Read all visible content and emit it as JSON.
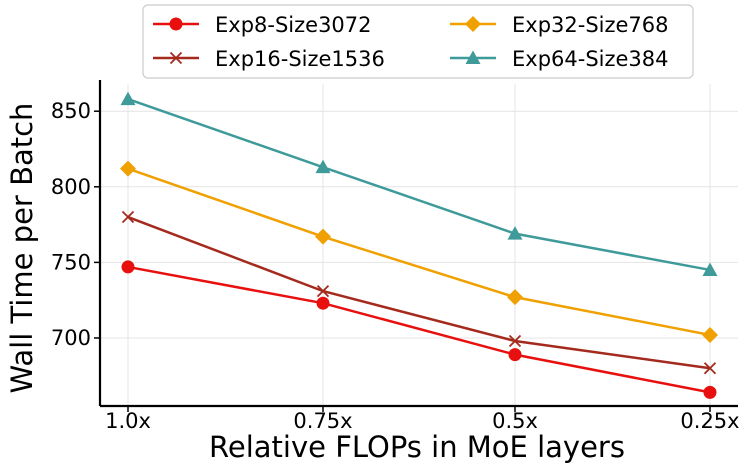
{
  "chart_data": {
    "type": "line",
    "title": "",
    "xlabel": "Relative FLOPs in MoE layers",
    "ylabel": "Wall Time per Batch",
    "categories": [
      "1.0x",
      "0.75x",
      "0.5x",
      "0.25x"
    ],
    "yticks": [
      700,
      750,
      800,
      850
    ],
    "ytick_labels": [
      "700",
      "750",
      "800",
      "850"
    ],
    "ylim": [
      655,
      868
    ],
    "grid": true,
    "legend_position": "top-center",
    "series": [
      {
        "name": "Exp8-Size3072",
        "color": "#e8100e",
        "marker": "circle",
        "values": [
          747,
          723,
          689,
          664
        ]
      },
      {
        "name": "Exp16-Size1536",
        "color": "#a52a1e",
        "marker": "x",
        "values": [
          780,
          731,
          698,
          680
        ]
      },
      {
        "name": "Exp32-Size768",
        "color": "#f0a000",
        "marker": "diamond",
        "values": [
          812,
          767,
          727,
          702
        ]
      },
      {
        "name": "Exp64-Size384",
        "color": "#3f9a9a",
        "marker": "triangle",
        "values": [
          858,
          813,
          769,
          745
        ]
      }
    ]
  }
}
